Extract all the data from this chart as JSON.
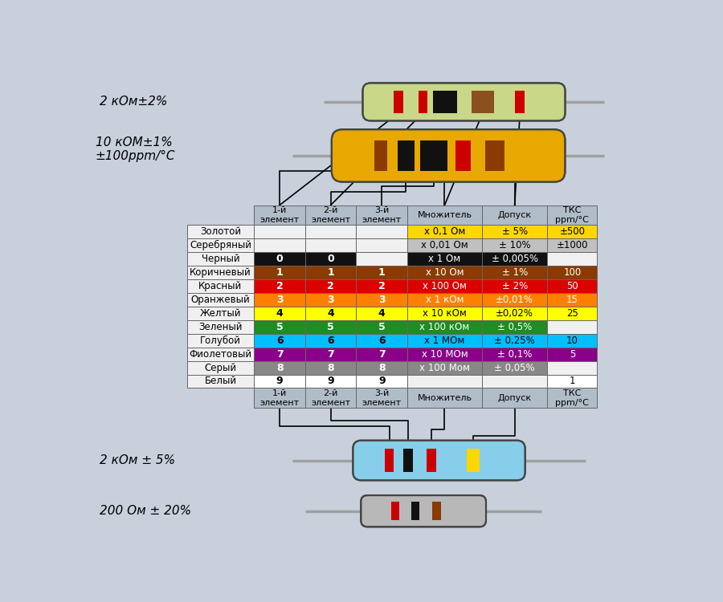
{
  "bg_color": "#c8d0dc",
  "rows": [
    {
      "name": "Золотой",
      "col1": "",
      "col2": "",
      "col3": "",
      "mult": "х 0,1 Ом",
      "tol": "± 5%",
      "tkc": "±500",
      "color": "#FFD700",
      "text_color": "#000000"
    },
    {
      "name": "Серебряный",
      "col1": "",
      "col2": "",
      "col3": "",
      "mult": "х 0,01 Ом",
      "tol": "± 10%",
      "tkc": "±1000",
      "color": "#C0C0C0",
      "text_color": "#000000"
    },
    {
      "name": "Черный",
      "col1": "0",
      "col2": "0",
      "col3": "",
      "mult": "х 1 Ом",
      "tol": "± 0,005%",
      "tkc": "",
      "color": "#111111",
      "text_color": "#ffffff"
    },
    {
      "name": "Коричневый",
      "col1": "1",
      "col2": "1",
      "col3": "1",
      "mult": "х 10 Ом",
      "tol": "± 1%",
      "tkc": "100",
      "color": "#8B3A00",
      "text_color": "#ffffff"
    },
    {
      "name": "Красный",
      "col1": "2",
      "col2": "2",
      "col3": "2",
      "mult": "х 100 Ом",
      "tol": "± 2%",
      "tkc": "50",
      "color": "#DD0000",
      "text_color": "#ffffff"
    },
    {
      "name": "Оранжевый",
      "col1": "3",
      "col2": "3",
      "col3": "3",
      "mult": "х 1 кОм",
      "tol": "±0,01%",
      "tkc": "15",
      "color": "#FF8000",
      "text_color": "#ffffff"
    },
    {
      "name": "Желтый",
      "col1": "4",
      "col2": "4",
      "col3": "4",
      "mult": "х 10 кОм",
      "tol": "±0,02%",
      "tkc": "25",
      "color": "#FFFF00",
      "text_color": "#000000"
    },
    {
      "name": "Зеленый",
      "col1": "5",
      "col2": "5",
      "col3": "5",
      "mult": "х 100 кОм",
      "tol": "± 0,5%",
      "tkc": "",
      "color": "#228B22",
      "text_color": "#ffffff"
    },
    {
      "name": "Голубой",
      "col1": "6",
      "col2": "6",
      "col3": "6",
      "mult": "х 1 МОм",
      "tol": "± 0,25%",
      "tkc": "10",
      "color": "#00BFFF",
      "text_color": "#000000"
    },
    {
      "name": "Фиолетовый",
      "col1": "7",
      "col2": "7",
      "col3": "7",
      "mult": "х 10 МОм",
      "tol": "± 0,1%",
      "tkc": "5",
      "color": "#8B008B",
      "text_color": "#ffffff"
    },
    {
      "name": "Серый",
      "col1": "8",
      "col2": "8",
      "col3": "8",
      "mult": "х 100 Мом",
      "tol": "± 0,05%",
      "tkc": "",
      "color": "#888888",
      "text_color": "#ffffff"
    },
    {
      "name": "Белый",
      "col1": "9",
      "col2": "9",
      "col3": "9",
      "mult": "",
      "tol": "",
      "tkc": "1",
      "color": "#FFFFFF",
      "text_color": "#000000"
    }
  ],
  "header": [
    "1-й\nэлемент",
    "2-й\nэлемент",
    "3-й\nэлемент",
    "Множитель",
    "Допуск",
    "ТКС\nppm/°C"
  ],
  "header_color": "#b0bcc8",
  "resistor1_label": "2 кОм±2%",
  "resistor2_label": "10 кОМ±1%\n±100ppm/°C",
  "resistor3_label": "2 кОм ± 5%",
  "resistor4_label": "200 Ом ± 20%"
}
